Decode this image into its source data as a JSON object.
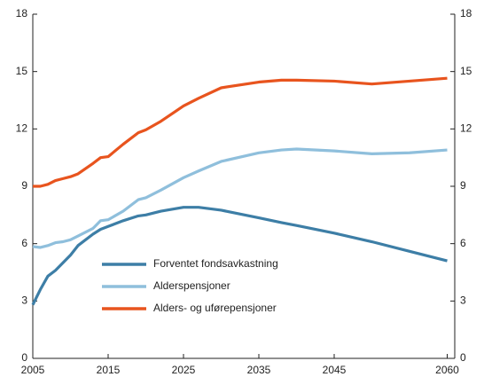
{
  "chart_data": {
    "type": "line",
    "x": [
      2005,
      2006,
      2007,
      2008,
      2009,
      2010,
      2011,
      2013,
      2014,
      2015,
      2017,
      2019,
      2020,
      2022,
      2025,
      2027,
      2030,
      2035,
      2038,
      2040,
      2045,
      2050,
      2055,
      2060
    ],
    "series": [
      {
        "name": "Forventet fondsavkastning",
        "color": "#3d7ea6",
        "values": [
          2.8,
          3.6,
          4.3,
          4.6,
          5.0,
          5.4,
          5.9,
          6.5,
          6.75,
          6.9,
          7.2,
          7.45,
          7.5,
          7.7,
          7.9,
          7.9,
          7.75,
          7.35,
          7.1,
          6.95,
          6.55,
          6.1,
          5.6,
          5.1
        ]
      },
      {
        "name": "Alderspensjoner",
        "color": "#8fbfdc",
        "values": [
          5.85,
          5.8,
          5.9,
          6.05,
          6.1,
          6.2,
          6.4,
          6.8,
          7.2,
          7.25,
          7.7,
          8.3,
          8.4,
          8.8,
          9.45,
          9.8,
          10.3,
          10.75,
          10.9,
          10.95,
          10.85,
          10.7,
          10.75,
          10.9
        ]
      },
      {
        "name": "Alders- og uførepensjoner",
        "color": "#e8541e",
        "values": [
          9.0,
          9.0,
          9.1,
          9.3,
          9.4,
          9.5,
          9.65,
          10.2,
          10.5,
          10.55,
          11.2,
          11.8,
          11.95,
          12.4,
          13.2,
          13.6,
          14.15,
          14.45,
          14.55,
          14.55,
          14.5,
          14.35,
          14.5,
          14.65
        ]
      }
    ],
    "xlim": [
      2005,
      2061
    ],
    "xticks": [
      2005,
      2015,
      2025,
      2035,
      2045,
      2060
    ],
    "ylim": [
      0,
      18
    ],
    "yticks": [
      0,
      3,
      6,
      9,
      12,
      15,
      18
    ]
  }
}
